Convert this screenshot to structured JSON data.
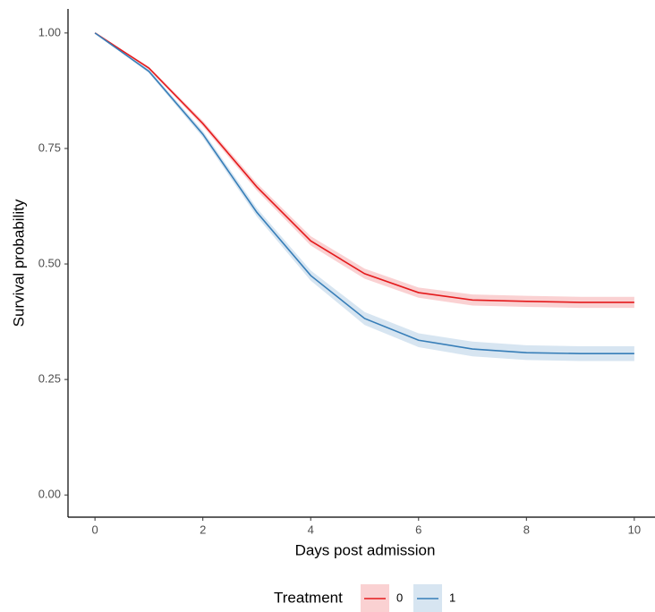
{
  "chart_data": {
    "type": "line",
    "x_label": "Days post admission",
    "y_label": "Survival probability",
    "x": [
      0,
      1,
      2,
      3,
      4,
      5,
      6,
      7,
      8,
      9,
      10
    ],
    "series": [
      {
        "name": "0",
        "color": "#e41a1c",
        "values": [
          1.0,
          0.924,
          0.804,
          0.667,
          0.55,
          0.479,
          0.438,
          0.422,
          0.419,
          0.417,
          0.417
        ],
        "lower": [
          1.0,
          0.921,
          0.798,
          0.659,
          0.54,
          0.468,
          0.427,
          0.41,
          0.407,
          0.405,
          0.405
        ],
        "upper": [
          1.0,
          0.927,
          0.81,
          0.675,
          0.56,
          0.49,
          0.449,
          0.434,
          0.431,
          0.429,
          0.429
        ]
      },
      {
        "name": "1",
        "color": "#377eb8",
        "values": [
          1.0,
          0.917,
          0.781,
          0.612,
          0.475,
          0.382,
          0.335,
          0.316,
          0.308,
          0.306,
          0.306
        ],
        "lower": [
          1.0,
          0.913,
          0.774,
          0.603,
          0.464,
          0.368,
          0.32,
          0.3,
          0.292,
          0.29,
          0.29
        ],
        "upper": [
          1.0,
          0.921,
          0.788,
          0.621,
          0.486,
          0.396,
          0.35,
          0.332,
          0.324,
          0.322,
          0.322
        ]
      }
    ],
    "legend_title": "Treatment",
    "legend_position": "bottom",
    "xlim": [
      -0.5,
      10.5
    ],
    "xticks": [
      0,
      2,
      4,
      6,
      8,
      10
    ],
    "ylim": [
      -0.048,
      1.052
    ],
    "yticks": [
      {
        "value": 0,
        "label": "0.00"
      },
      {
        "value": 0.25,
        "label": "0.25"
      },
      {
        "value": 0.5,
        "label": "0.50"
      },
      {
        "value": 0.75,
        "label": "0.75"
      },
      {
        "value": 1,
        "label": "1.00"
      }
    ],
    "grid": false
  }
}
